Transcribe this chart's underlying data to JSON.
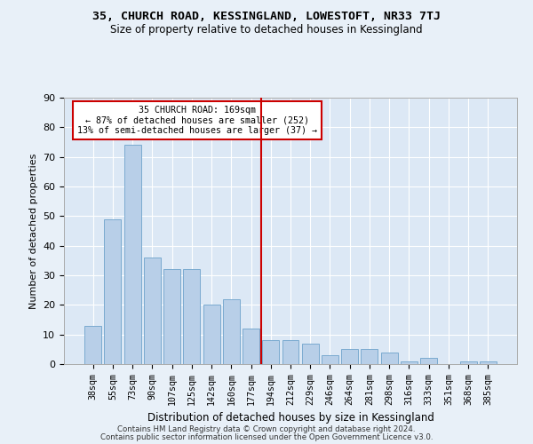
{
  "title": "35, CHURCH ROAD, KESSINGLAND, LOWESTOFT, NR33 7TJ",
  "subtitle": "Size of property relative to detached houses in Kessingland",
  "xlabel": "Distribution of detached houses by size in Kessingland",
  "ylabel": "Number of detached properties",
  "categories": [
    "38sqm",
    "55sqm",
    "73sqm",
    "90sqm",
    "107sqm",
    "125sqm",
    "142sqm",
    "160sqm",
    "177sqm",
    "194sqm",
    "212sqm",
    "229sqm",
    "246sqm",
    "264sqm",
    "281sqm",
    "298sqm",
    "316sqm",
    "333sqm",
    "351sqm",
    "368sqm",
    "385sqm"
  ],
  "values": [
    13,
    49,
    74,
    36,
    32,
    32,
    20,
    22,
    12,
    8,
    8,
    7,
    3,
    5,
    5,
    4,
    1,
    2,
    0,
    1,
    1
  ],
  "bar_color": "#b8cfe8",
  "bar_edge_color": "#7aaad0",
  "vline_x": 8.5,
  "annotation_title": "35 CHURCH ROAD: 169sqm",
  "annotation_line1": "← 87% of detached houses are smaller (252)",
  "annotation_line2": "13% of semi-detached houses are larger (37) →",
  "annotation_box_color": "#ffffff",
  "annotation_box_edge_color": "#cc0000",
  "vline_color": "#cc0000",
  "ylim": [
    0,
    90
  ],
  "yticks": [
    0,
    10,
    20,
    30,
    40,
    50,
    60,
    70,
    80,
    90
  ],
  "bg_color": "#e8f0f8",
  "plot_bg_color": "#dce8f5",
  "footer1": "Contains HM Land Registry data © Crown copyright and database right 2024.",
  "footer2": "Contains public sector information licensed under the Open Government Licence v3.0."
}
